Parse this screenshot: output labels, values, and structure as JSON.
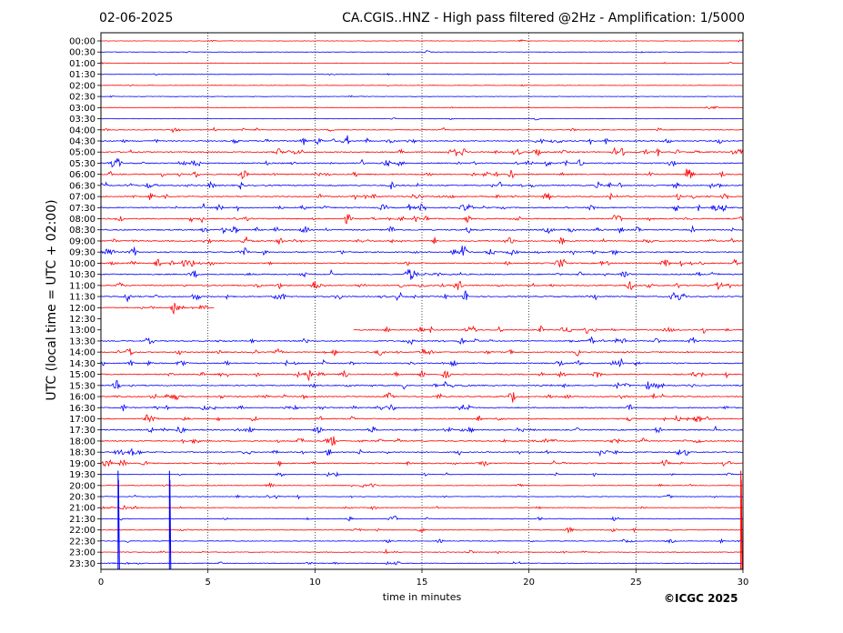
{
  "header": {
    "date": "02-06-2025",
    "title": "CA.CGIS..HNZ - High pass filtered @2Hz - Amplification: 1/5000"
  },
  "copyright": "©ICGC 2025",
  "chart_data": {
    "type": "line",
    "title": "CA.CGIS..HNZ - High pass filtered @2Hz - Amplification: 1/5000",
    "xlabel": "time in minutes",
    "ylabel": "UTC (local time = UTC + 02:00)",
    "xlim": [
      0,
      30
    ],
    "x_ticks": [
      0,
      5,
      10,
      15,
      20,
      25,
      30
    ],
    "y_ticks": [
      "00:00",
      "00:30",
      "01:00",
      "01:30",
      "02:00",
      "02:30",
      "03:00",
      "03:30",
      "04:00",
      "04:30",
      "05:00",
      "05:30",
      "06:00",
      "06:30",
      "07:00",
      "07:30",
      "08:00",
      "08:30",
      "09:00",
      "09:30",
      "10:00",
      "10:30",
      "11:00",
      "11:30",
      "12:00",
      "12:30",
      "13:00",
      "13:30",
      "14:00",
      "14:30",
      "15:00",
      "15:30",
      "16:00",
      "16:30",
      "17:00",
      "17:30",
      "18:00",
      "18:30",
      "19:00",
      "19:30",
      "20:00",
      "20:30",
      "21:00",
      "21:30",
      "22:00",
      "22:30",
      "23:00",
      "23:30"
    ],
    "grid": "vertical dotted lines at 5-minute intervals",
    "colors": {
      "even_rows": "#ff0000",
      "odd_rows": "#0000ff"
    },
    "gap": {
      "from": "12:00",
      "minute": 5.3,
      "to": "13:00",
      "resume_minute": 11.8
    },
    "large_spikes_minutes": [
      0.8,
      3.2,
      29.9
    ]
  }
}
